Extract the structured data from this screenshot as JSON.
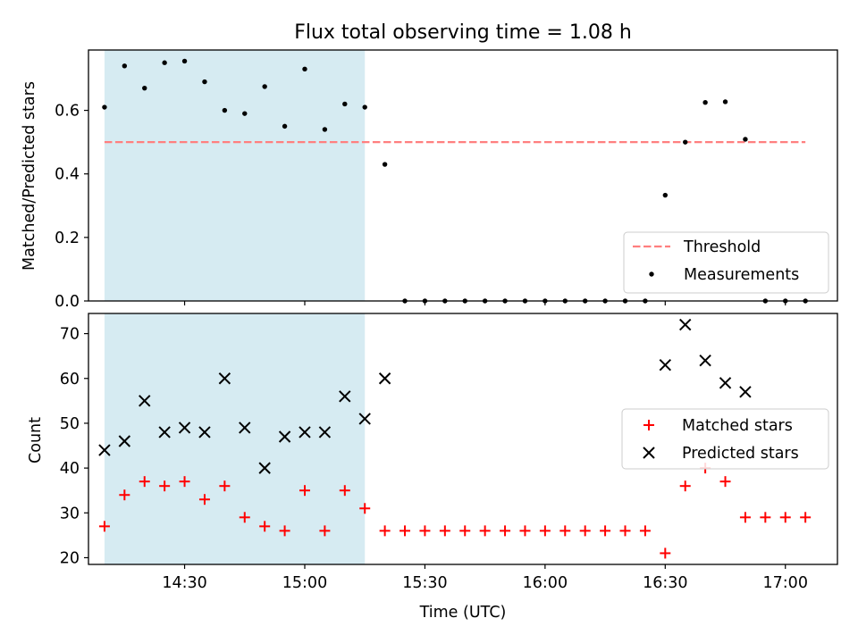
{
  "chart_data": {
    "type": "scatter",
    "title": "Flux total observing time = 1.08 h",
    "shaded_span": {
      "start": "14:10",
      "end": "15:15",
      "color": "#add8e6"
    },
    "xlabel": "Time (UTC)",
    "xlim": [
      "14:06",
      "17:13"
    ],
    "xticks": [
      "14:30",
      "15:00",
      "15:30",
      "16:00",
      "16:30",
      "17:00"
    ],
    "x": [
      "14:10",
      "14:15",
      "14:20",
      "14:25",
      "14:30",
      "14:35",
      "14:40",
      "14:45",
      "14:50",
      "14:55",
      "15:00",
      "15:05",
      "15:10",
      "15:15",
      "15:20",
      "15:25",
      "15:30",
      "15:35",
      "15:40",
      "15:45",
      "15:50",
      "15:55",
      "16:00",
      "16:05",
      "16:10",
      "16:15",
      "16:20",
      "16:25",
      "16:30",
      "16:35",
      "16:40",
      "16:45",
      "16:50",
      "16:55",
      "17:00",
      "17:05"
    ],
    "panels": [
      {
        "ylabel": "Matched/Predicted stars",
        "ylim": [
          0,
          0.79
        ],
        "yticks": [
          "0.0",
          "0.2",
          "0.4",
          "0.6"
        ],
        "threshold": {
          "name": "Threshold",
          "value": 0.5,
          "color": "#ff7f7f"
        },
        "legend_position": "lower right",
        "series": [
          {
            "name": "Measurements",
            "marker": "dot",
            "color": "#000000",
            "values": [
              0.61,
              0.74,
              0.67,
              0.75,
              0.755,
              0.69,
              0.6,
              0.59,
              0.675,
              0.55,
              0.73,
              0.54,
              0.62,
              0.61,
              0.43,
              0.0,
              0.0,
              0.0,
              0.0,
              0.0,
              0.0,
              0.0,
              0.0,
              0.0,
              0.0,
              0.0,
              0.0,
              0.0,
              0.333,
              0.5,
              0.625,
              0.627,
              0.509,
              0.0,
              0.0,
              0.0
            ]
          }
        ]
      },
      {
        "ylabel": "Count",
        "ylim": [
          18.5,
          74.5
        ],
        "yticks": [
          "20",
          "30",
          "40",
          "50",
          "60",
          "70"
        ],
        "legend_position": "center right",
        "series": [
          {
            "name": "Matched stars",
            "marker": "plus",
            "color": "#ff0000",
            "values": [
              27,
              34,
              37,
              36,
              37,
              33,
              36,
              29,
              27,
              26,
              35,
              26,
              35,
              31,
              26,
              26,
              26,
              26,
              26,
              26,
              26,
              26,
              26,
              26,
              26,
              26,
              26,
              26,
              21,
              36,
              40,
              37,
              29,
              29,
              29,
              29
            ]
          },
          {
            "name": "Predicted stars",
            "marker": "x",
            "color": "#000000",
            "values": [
              44,
              46,
              55,
              48,
              49,
              48,
              60,
              49,
              40,
              47,
              48,
              48,
              56,
              51,
              60,
              null,
              null,
              null,
              null,
              null,
              null,
              null,
              null,
              null,
              null,
              null,
              null,
              null,
              63,
              72,
              64,
              59,
              57,
              null,
              null,
              null
            ]
          }
        ]
      }
    ]
  }
}
